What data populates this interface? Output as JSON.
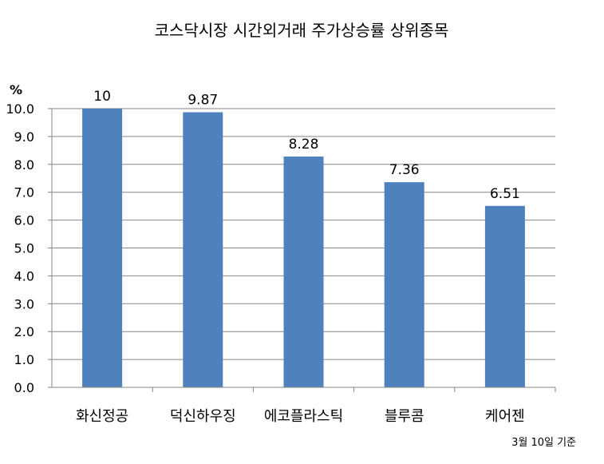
{
  "chart_data": {
    "type": "bar",
    "title": "코스닥시장 시간외거래  주가상승률 상위종목",
    "ylabel": "%",
    "xlabel": "",
    "categories": [
      "화신정공",
      "덕신하우징",
      "에코플라스틱",
      "블루콤",
      "케어젠"
    ],
    "values": [
      10,
      9.87,
      8.28,
      7.36,
      6.51
    ],
    "value_labels": [
      "10",
      "9.87",
      "8.28",
      "7.36",
      "6.51"
    ],
    "ylim": [
      0,
      10
    ],
    "yticks": [
      0,
      1,
      2,
      3,
      4,
      5,
      6,
      7,
      8,
      9,
      10
    ],
    "ytick_labels": [
      "0.0",
      "1.0",
      "2.0",
      "3.0",
      "4.0",
      "5.0",
      "6.0",
      "7.0",
      "8.0",
      "9.0",
      "10.0"
    ],
    "grid": true,
    "bar_color": "#4f81bd",
    "note": "3월 10일 기준"
  }
}
